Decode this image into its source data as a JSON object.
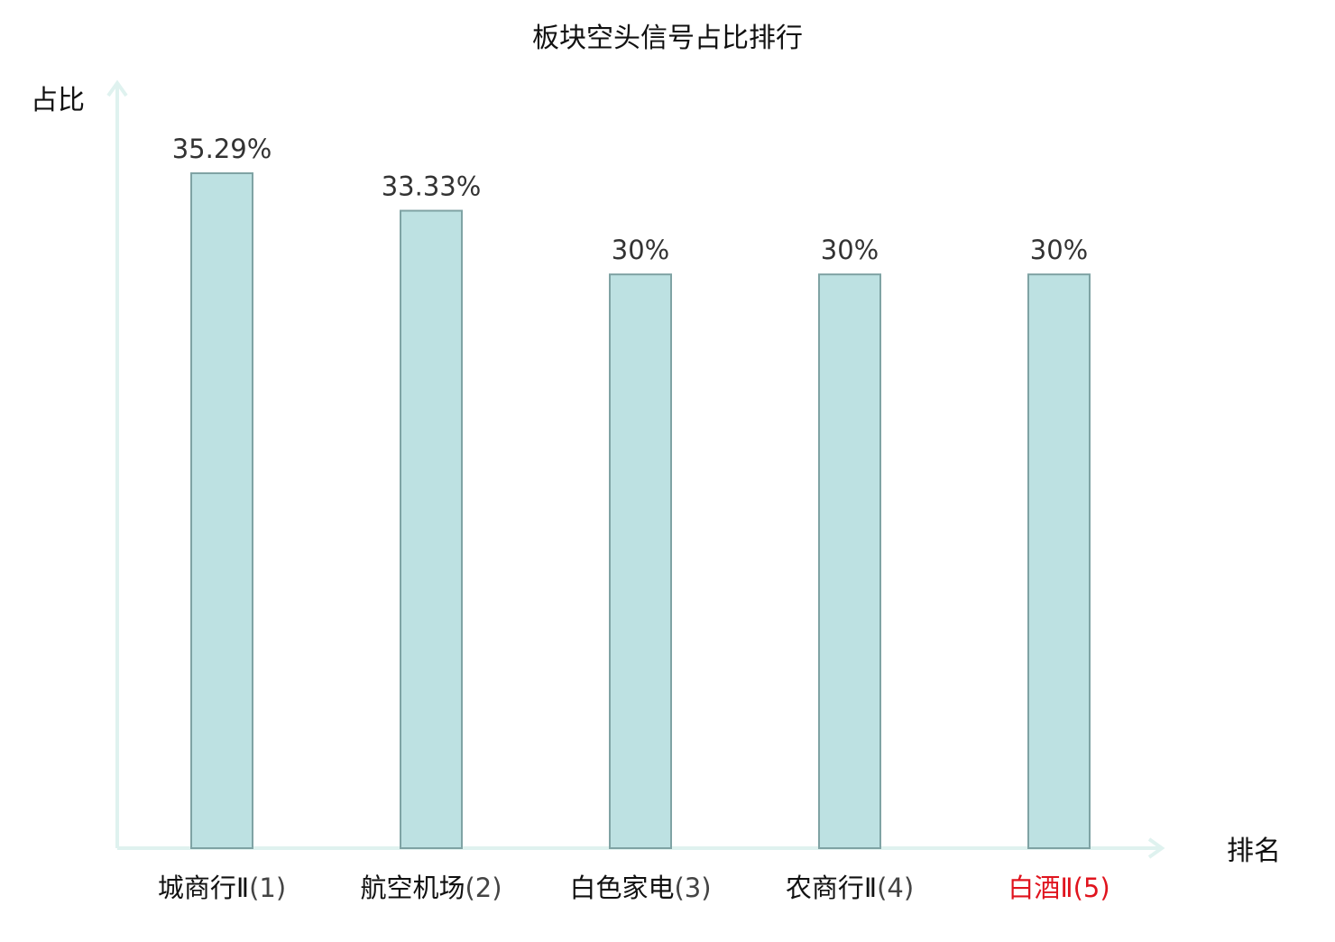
{
  "chart_data": {
    "type": "bar",
    "title": "板块空头信号占比排行",
    "ylabel": "占比",
    "xlabel": "排名",
    "categories": [
      "城商行Ⅱ",
      "航空机场",
      "白色家电",
      "农商行Ⅱ",
      "白酒Ⅱ"
    ],
    "ranks": [
      "(1)",
      "(2)",
      "(3)",
      "(4)",
      "(5)"
    ],
    "values": [
      35.29,
      33.33,
      30,
      30,
      30
    ],
    "value_labels": [
      "35.29%",
      "33.33%",
      "30%",
      "30%",
      "30%"
    ],
    "ylim": [
      0,
      42
    ],
    "grid": false,
    "highlight_index": 4,
    "colors": {
      "bar_fill": "#bde1e2",
      "bar_stroke": "#7fa3a4",
      "axis": "#dff2ef",
      "title_text": "#111111",
      "value_text": "#333333",
      "category_text": "#111111",
      "rank_text": "#444444",
      "highlight_text": "#e0141e"
    }
  }
}
